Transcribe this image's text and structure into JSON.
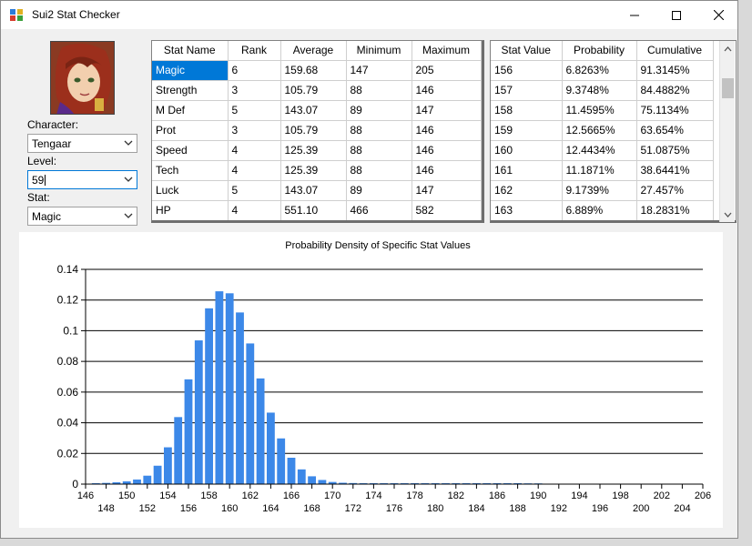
{
  "window": {
    "title": "Sui2 Stat Checker"
  },
  "controls": {
    "character_label": "Character:",
    "character_value": "Tengaar",
    "level_label": "Level:",
    "level_value": "59",
    "stat_label": "Stat:",
    "stat_value": "Magic"
  },
  "stats_table": {
    "columns": [
      "Stat Name",
      "Rank",
      "Average",
      "Minimum",
      "Maximum"
    ],
    "rows": [
      [
        "Magic",
        "6",
        "159.68",
        "147",
        "205"
      ],
      [
        "Strength",
        "3",
        "105.79",
        "88",
        "146"
      ],
      [
        "M Def",
        "5",
        "143.07",
        "89",
        "147"
      ],
      [
        "Prot",
        "3",
        "105.79",
        "88",
        "146"
      ],
      [
        "Speed",
        "4",
        "125.39",
        "88",
        "146"
      ],
      [
        "Tech",
        "4",
        "125.39",
        "88",
        "146"
      ],
      [
        "Luck",
        "5",
        "143.07",
        "89",
        "147"
      ],
      [
        "HP",
        "4",
        "551.10",
        "466",
        "582"
      ]
    ]
  },
  "prob_table": {
    "columns": [
      "Stat Value",
      "Probability",
      "Cumulative"
    ],
    "rows": [
      [
        "156",
        "6.8263%",
        "91.3145%"
      ],
      [
        "157",
        "9.3748%",
        "84.4882%"
      ],
      [
        "158",
        "11.4595%",
        "75.1134%"
      ],
      [
        "159",
        "12.5665%",
        "63.654%"
      ],
      [
        "160",
        "12.4434%",
        "51.0875%"
      ],
      [
        "161",
        "11.1871%",
        "38.6441%"
      ],
      [
        "162",
        "9.1739%",
        "27.457%"
      ],
      [
        "163",
        "6.889%",
        "18.2831%"
      ]
    ]
  },
  "colors": {
    "bar": "#3c88e8",
    "selection": "#0078d7"
  },
  "chart_data": {
    "type": "bar",
    "title": "Probability Density of Specific Stat Values",
    "xlabel": "",
    "ylabel": "",
    "xlim": [
      146,
      206
    ],
    "ylim": [
      0,
      0.14
    ],
    "grid": true,
    "yticks": [
      "0",
      "0.02",
      "0.04",
      "0.06",
      "0.08",
      "0.1",
      "0.12",
      "0.14"
    ],
    "xticks": [
      "146",
      "148",
      "150",
      "152",
      "154",
      "156",
      "158",
      "160",
      "162",
      "164",
      "166",
      "168",
      "170",
      "172",
      "174",
      "176",
      "178",
      "180",
      "182",
      "184",
      "186",
      "188",
      "190",
      "192",
      "194",
      "196",
      "198",
      "200",
      "202",
      "204",
      "206"
    ],
    "x": [
      147,
      148,
      149,
      150,
      151,
      152,
      153,
      154,
      155,
      156,
      157,
      158,
      159,
      160,
      161,
      162,
      163,
      164,
      165,
      166,
      167,
      168,
      169,
      170,
      171,
      172,
      173,
      174,
      175,
      176,
      177,
      178,
      179,
      180,
      181,
      182,
      183,
      184,
      185,
      186,
      187,
      188,
      189,
      190
    ],
    "values": [
      0.0006,
      0.0008,
      0.0012,
      0.0018,
      0.003,
      0.0055,
      0.012,
      0.024,
      0.0437,
      0.0683,
      0.0937,
      0.1146,
      0.1257,
      0.1244,
      0.1119,
      0.0917,
      0.0689,
      0.0466,
      0.0298,
      0.0172,
      0.0096,
      0.0051,
      0.0027,
      0.0014,
      0.0009,
      0.0007,
      0.0006,
      0.0006,
      0.0006,
      0.0006,
      0.0006,
      0.0006,
      0.0006,
      0.0006,
      0.0006,
      0.0006,
      0.0006,
      0.0006,
      0.0006,
      0.0006,
      0.0006,
      0.0006,
      0.0005,
      0.0004
    ]
  }
}
